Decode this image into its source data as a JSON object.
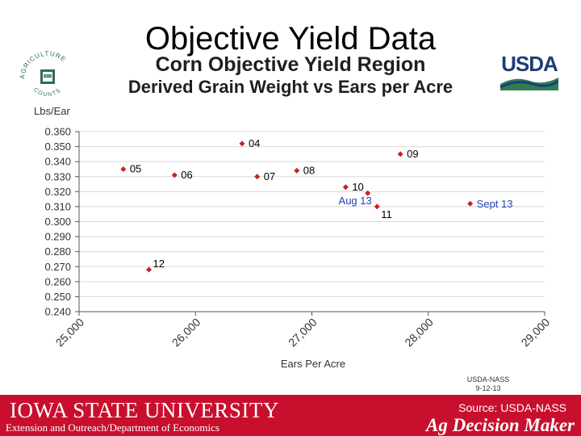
{
  "slide": {
    "title": "Objective Yield Data",
    "usda_logo_text": "USDA",
    "ag_logo_text": [
      "AGRICULTURE",
      "COUNTS",
      "NASS"
    ],
    "nass_stamp_line1": "USDA-NASS",
    "nass_stamp_line2": "9-12-13"
  },
  "footer": {
    "university": "IOWA STATE UNIVERSITY",
    "department": "Extension and Outreach/Department of Economics",
    "source": "Source: USDA-NASS",
    "brand": "Ag Decision Maker",
    "bg_color": "#c8102e"
  },
  "chart_data": {
    "type": "scatter",
    "title": "Corn Objective Yield Region",
    "subtitle": "Derived Grain Weight vs Ears per Acre",
    "xlabel": "Ears Per Acre",
    "ylabel": "Lbs/Ear",
    "xlim": [
      25000,
      29000
    ],
    "ylim": [
      0.24,
      0.36
    ],
    "x_ticks": [
      "25,000",
      "26,000",
      "27,000",
      "28,000",
      "29,000"
    ],
    "x_tick_values": [
      25000,
      26000,
      27000,
      28000,
      29000
    ],
    "y_ticks": [
      "0.360",
      "0.350",
      "0.340",
      "0.330",
      "0.320",
      "0.310",
      "0.300",
      "0.290",
      "0.280",
      "0.270",
      "0.260",
      "0.250",
      "0.240"
    ],
    "y_tick_values": [
      0.36,
      0.35,
      0.34,
      0.33,
      0.32,
      0.31,
      0.3,
      0.29,
      0.28,
      0.27,
      0.26,
      0.25,
      0.24
    ],
    "grid": "horizontal",
    "marker_color": "#cc1f1f",
    "points": [
      {
        "label": "05",
        "x": 25380,
        "y": 0.335,
        "label_color": "#000000"
      },
      {
        "label": "12",
        "x": 25600,
        "y": 0.268,
        "label_color": "#000000"
      },
      {
        "label": "06",
        "x": 25820,
        "y": 0.331,
        "label_color": "#000000"
      },
      {
        "label": "04",
        "x": 26400,
        "y": 0.352,
        "label_color": "#000000"
      },
      {
        "label": "07",
        "x": 26530,
        "y": 0.33,
        "label_color": "#000000"
      },
      {
        "label": "08",
        "x": 26870,
        "y": 0.334,
        "label_color": "#000000"
      },
      {
        "label": "10",
        "x": 27290,
        "y": 0.323,
        "label_color": "#000000"
      },
      {
        "label": "Aug 13",
        "x": 27480,
        "y": 0.319,
        "label_color": "#1f3fbf"
      },
      {
        "label": "11",
        "x": 27560,
        "y": 0.31,
        "label_color": "#000000"
      },
      {
        "label": "09",
        "x": 27760,
        "y": 0.345,
        "label_color": "#000000"
      },
      {
        "label": "Sept 13",
        "x": 28360,
        "y": 0.312,
        "label_color": "#1f3fbf"
      }
    ]
  }
}
